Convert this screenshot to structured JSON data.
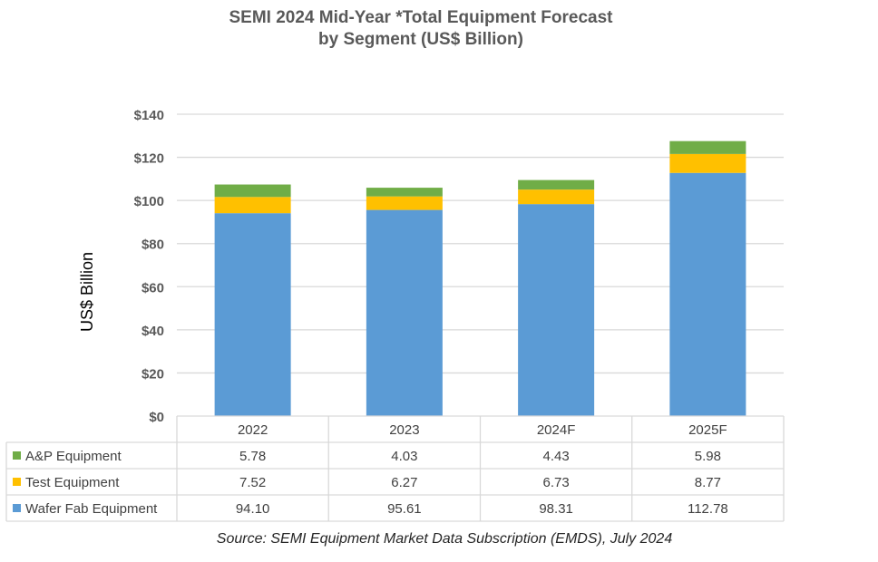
{
  "chart_data": {
    "type": "bar",
    "stacked": true,
    "title": "SEMI 2024 Mid-Year *Total Equipment Forecast",
    "subtitle": "by Segment (US$ Billion)",
    "xlabel": "",
    "ylabel": "US$ Billion",
    "ylim": [
      0,
      140
    ],
    "yticks": [
      0,
      20,
      40,
      60,
      80,
      100,
      120,
      140
    ],
    "ytick_labels": [
      "$0",
      "$20",
      "$40",
      "$60",
      "$80",
      "$100",
      "$120",
      "$140"
    ],
    "grid": true,
    "legend_placement": "data-table-left",
    "categories": [
      "2022",
      "2023",
      "2024F",
      "2025F"
    ],
    "series": [
      {
        "name": "Wafer Fab Equipment",
        "color": "#5B9BD5",
        "values": [
          94.1,
          95.61,
          98.31,
          112.78
        ],
        "labels": [
          "94.10",
          "95.61",
          "98.31",
          "112.78"
        ]
      },
      {
        "name": "Test Equipment",
        "color": "#FFC000",
        "values": [
          7.52,
          6.27,
          6.73,
          8.77
        ],
        "labels": [
          "7.52",
          "6.27",
          "6.73",
          "8.77"
        ]
      },
      {
        "name": "A&P Equipment",
        "color": "#70AD47",
        "values": [
          5.78,
          4.03,
          4.43,
          5.98
        ],
        "labels": [
          "5.78",
          "4.03",
          "4.43",
          "5.98"
        ]
      }
    ],
    "table_row_order": [
      "A&P Equipment",
      "Test Equipment",
      "Wafer Fab Equipment"
    ],
    "source": "Source: SEMI Equipment Market Data Subscription (EMDS), July 2024"
  }
}
